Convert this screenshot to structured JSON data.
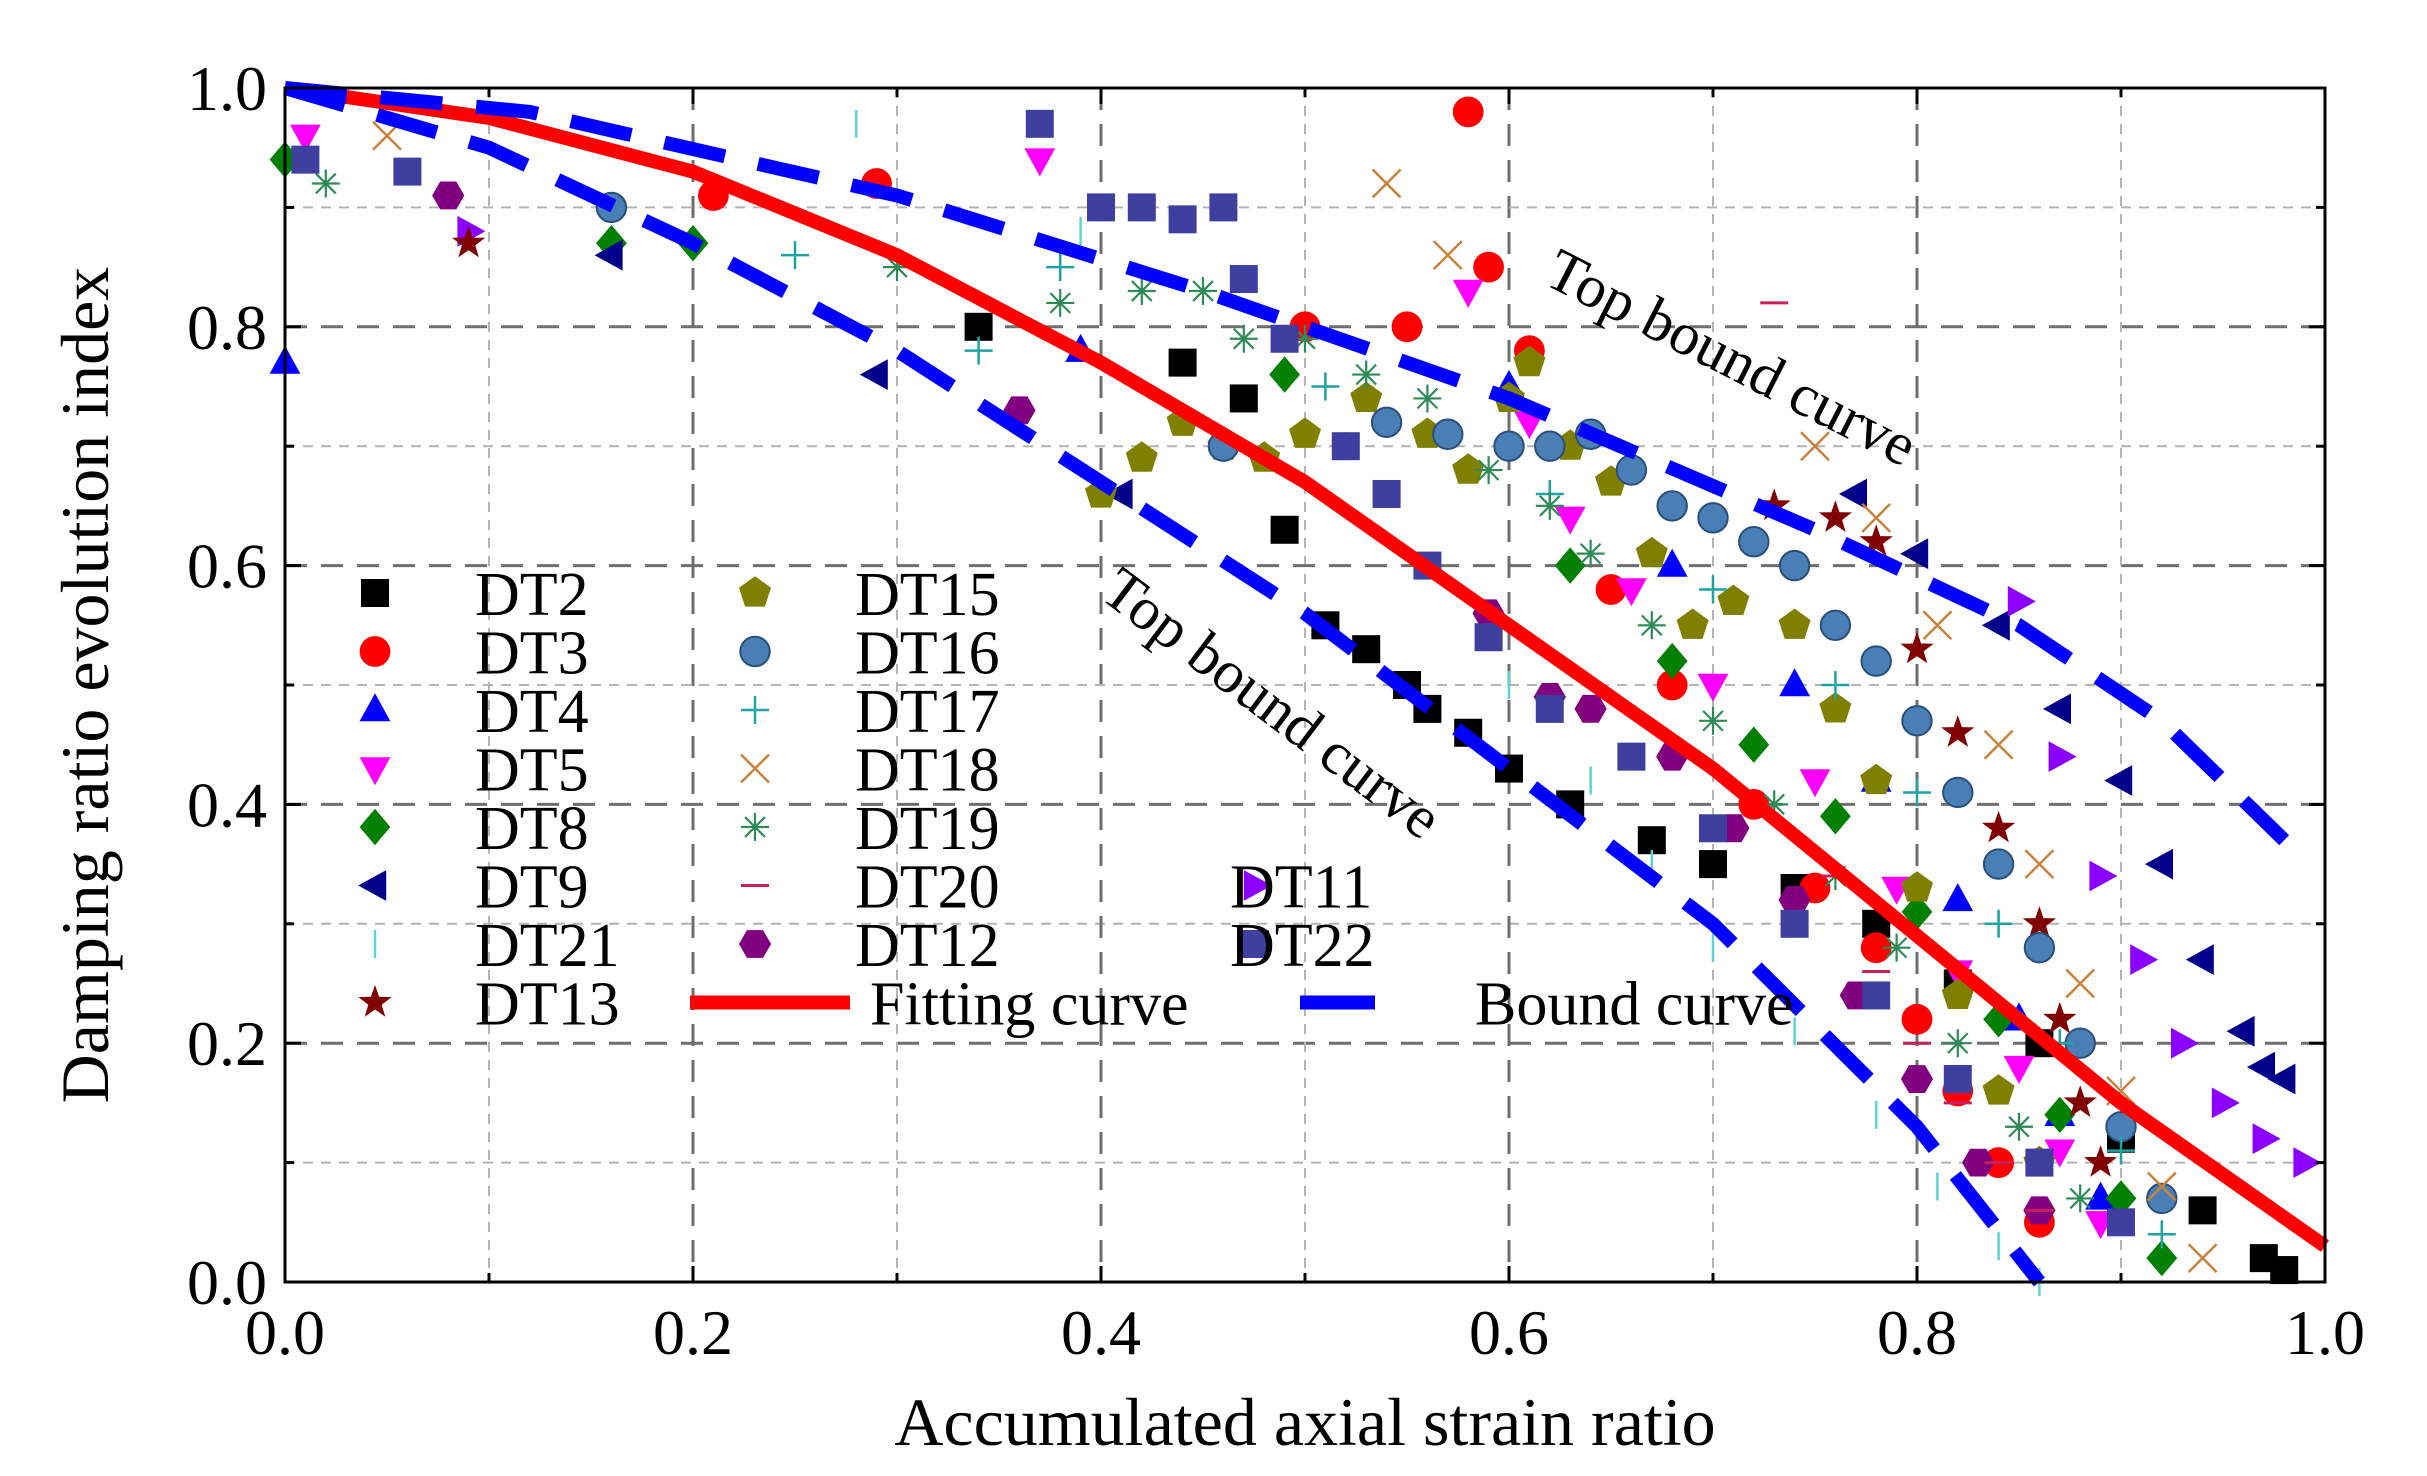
{
  "chart_data": {
    "type": "scatter",
    "xlabel": "Accumulated axial strain ratio",
    "ylabel": "Damping ratio evolution index",
    "xlim": [
      0,
      1
    ],
    "ylim": [
      0,
      1
    ],
    "x_ticks": [
      "0.0",
      "0.2",
      "0.4",
      "0.6",
      "0.8",
      "1.0"
    ],
    "y_ticks": [
      "0.0",
      "0.2",
      "0.4",
      "0.6",
      "0.8",
      "1.0"
    ],
    "grid": true,
    "legend_position": "bottom-left",
    "annotations": [
      "Top bound curve",
      "Top bound curve"
    ],
    "series": [
      {
        "name": "DT2",
        "marker": "square",
        "color": "#000000",
        "points": [
          [
            0.34,
            0.8
          ],
          [
            0.44,
            0.77
          ],
          [
            0.47,
            0.74
          ],
          [
            0.49,
            0.63
          ],
          [
            0.51,
            0.55
          ],
          [
            0.53,
            0.53
          ],
          [
            0.55,
            0.5
          ],
          [
            0.56,
            0.48
          ],
          [
            0.58,
            0.46
          ],
          [
            0.6,
            0.43
          ],
          [
            0.63,
            0.4
          ],
          [
            0.67,
            0.37
          ],
          [
            0.7,
            0.35
          ],
          [
            0.74,
            0.33
          ],
          [
            0.78,
            0.3
          ],
          [
            0.82,
            0.25
          ],
          [
            0.86,
            0.2
          ],
          [
            0.9,
            0.12
          ],
          [
            0.94,
            0.06
          ],
          [
            0.97,
            0.02
          ],
          [
            0.98,
            0.01
          ]
        ]
      },
      {
        "name": "DT3",
        "marker": "circle",
        "color": "#ff0000",
        "points": [
          [
            0.21,
            0.91
          ],
          [
            0.29,
            0.92
          ],
          [
            0.5,
            0.8
          ],
          [
            0.55,
            0.8
          ],
          [
            0.58,
            0.98
          ],
          [
            0.59,
            0.85
          ],
          [
            0.61,
            0.78
          ],
          [
            0.65,
            0.58
          ],
          [
            0.68,
            0.5
          ],
          [
            0.72,
            0.4
          ],
          [
            0.75,
            0.33
          ],
          [
            0.78,
            0.28
          ],
          [
            0.8,
            0.22
          ],
          [
            0.82,
            0.16
          ],
          [
            0.84,
            0.1
          ],
          [
            0.86,
            0.05
          ]
        ]
      },
      {
        "name": "DT4",
        "marker": "triangle-up",
        "color": "#0000ff",
        "points": [
          [
            0.0,
            0.77
          ],
          [
            0.39,
            0.78
          ],
          [
            0.6,
            0.75
          ],
          [
            0.68,
            0.6
          ],
          [
            0.74,
            0.5
          ],
          [
            0.78,
            0.42
          ],
          [
            0.82,
            0.32
          ],
          [
            0.85,
            0.22
          ],
          [
            0.87,
            0.14
          ],
          [
            0.89,
            0.07
          ]
        ]
      },
      {
        "name": "DT5",
        "marker": "triangle-down",
        "color": "#ff00ff",
        "points": [
          [
            0.01,
            0.96
          ],
          [
            0.37,
            0.94
          ],
          [
            0.58,
            0.83
          ],
          [
            0.61,
            0.72
          ],
          [
            0.63,
            0.64
          ],
          [
            0.66,
            0.58
          ],
          [
            0.7,
            0.5
          ],
          [
            0.75,
            0.42
          ],
          [
            0.79,
            0.33
          ],
          [
            0.82,
            0.26
          ],
          [
            0.85,
            0.18
          ],
          [
            0.87,
            0.11
          ],
          [
            0.89,
            0.05
          ]
        ]
      },
      {
        "name": "DT8",
        "marker": "diamond",
        "color": "#008000",
        "points": [
          [
            0.0,
            0.94
          ],
          [
            0.16,
            0.87
          ],
          [
            0.2,
            0.87
          ],
          [
            0.49,
            0.76
          ],
          [
            0.63,
            0.6
          ],
          [
            0.68,
            0.52
          ],
          [
            0.72,
            0.45
          ],
          [
            0.76,
            0.39
          ],
          [
            0.8,
            0.31
          ],
          [
            0.84,
            0.22
          ],
          [
            0.87,
            0.14
          ],
          [
            0.9,
            0.07
          ],
          [
            0.92,
            0.02
          ]
        ]
      },
      {
        "name": "DT9",
        "marker": "triangle-left",
        "color": "#00008b",
        "points": [
          [
            0.16,
            0.86
          ],
          [
            0.29,
            0.76
          ],
          [
            0.41,
            0.66
          ],
          [
            0.77,
            0.66
          ],
          [
            0.8,
            0.61
          ],
          [
            0.84,
            0.55
          ],
          [
            0.87,
            0.48
          ],
          [
            0.9,
            0.42
          ],
          [
            0.92,
            0.35
          ],
          [
            0.94,
            0.27
          ],
          [
            0.96,
            0.21
          ],
          [
            0.97,
            0.18
          ],
          [
            0.98,
            0.17
          ]
        ]
      },
      {
        "name": "DT11",
        "marker": "triangle-right",
        "color": "#8b00ff",
        "points": [
          [
            0.09,
            0.88
          ],
          [
            0.85,
            0.57
          ],
          [
            0.87,
            0.44
          ],
          [
            0.89,
            0.34
          ],
          [
            0.91,
            0.27
          ],
          [
            0.93,
            0.2
          ],
          [
            0.95,
            0.15
          ],
          [
            0.97,
            0.12
          ],
          [
            0.99,
            0.1
          ]
        ]
      },
      {
        "name": "DT12",
        "marker": "hexagon",
        "color": "#800080",
        "points": [
          [
            0.08,
            0.91
          ],
          [
            0.36,
            0.73
          ],
          [
            0.59,
            0.56
          ],
          [
            0.62,
            0.49
          ],
          [
            0.64,
            0.48
          ],
          [
            0.68,
            0.44
          ],
          [
            0.71,
            0.38
          ],
          [
            0.74,
            0.32
          ],
          [
            0.77,
            0.24
          ],
          [
            0.8,
            0.17
          ],
          [
            0.83,
            0.1
          ],
          [
            0.86,
            0.06
          ]
        ]
      },
      {
        "name": "DT13",
        "marker": "star",
        "color": "#800000",
        "points": [
          [
            0.09,
            0.87
          ],
          [
            0.73,
            0.65
          ],
          [
            0.76,
            0.64
          ],
          [
            0.78,
            0.62
          ],
          [
            0.8,
            0.53
          ],
          [
            0.82,
            0.46
          ],
          [
            0.84,
            0.38
          ],
          [
            0.86,
            0.3
          ],
          [
            0.87,
            0.22
          ],
          [
            0.88,
            0.15
          ],
          [
            0.89,
            0.1
          ]
        ]
      },
      {
        "name": "DT15",
        "marker": "pentagon",
        "color": "#808000",
        "points": [
          [
            0.4,
            0.66
          ],
          [
            0.42,
            0.69
          ],
          [
            0.44,
            0.72
          ],
          [
            0.46,
            0.7
          ],
          [
            0.48,
            0.69
          ],
          [
            0.5,
            0.71
          ],
          [
            0.53,
            0.74
          ],
          [
            0.56,
            0.71
          ],
          [
            0.58,
            0.68
          ],
          [
            0.6,
            0.74
          ],
          [
            0.61,
            0.77
          ],
          [
            0.63,
            0.7
          ],
          [
            0.65,
            0.67
          ],
          [
            0.67,
            0.61
          ],
          [
            0.69,
            0.55
          ],
          [
            0.71,
            0.57
          ],
          [
            0.74,
            0.55
          ],
          [
            0.76,
            0.48
          ],
          [
            0.78,
            0.42
          ],
          [
            0.8,
            0.33
          ],
          [
            0.82,
            0.24
          ],
          [
            0.84,
            0.16
          ],
          [
            0.86,
            0.1
          ]
        ]
      },
      {
        "name": "DT16",
        "marker": "sphere",
        "color": "#4a7fb5",
        "points": [
          [
            0.16,
            0.9
          ],
          [
            0.46,
            0.7
          ],
          [
            0.54,
            0.72
          ],
          [
            0.57,
            0.71
          ],
          [
            0.6,
            0.7
          ],
          [
            0.62,
            0.7
          ],
          [
            0.64,
            0.71
          ],
          [
            0.66,
            0.68
          ],
          [
            0.68,
            0.65
          ],
          [
            0.7,
            0.64
          ],
          [
            0.72,
            0.62
          ],
          [
            0.74,
            0.6
          ],
          [
            0.76,
            0.55
          ],
          [
            0.78,
            0.52
          ],
          [
            0.8,
            0.47
          ],
          [
            0.82,
            0.41
          ],
          [
            0.84,
            0.35
          ],
          [
            0.86,
            0.28
          ],
          [
            0.88,
            0.2
          ],
          [
            0.9,
            0.13
          ],
          [
            0.92,
            0.07
          ]
        ]
      },
      {
        "name": "DT17",
        "marker": "plus",
        "color": "#1fa3a3",
        "points": [
          [
            0.25,
            0.86
          ],
          [
            0.34,
            0.78
          ],
          [
            0.38,
            0.85
          ],
          [
            0.51,
            0.75
          ],
          [
            0.62,
            0.66
          ],
          [
            0.7,
            0.58
          ],
          [
            0.76,
            0.5
          ],
          [
            0.8,
            0.41
          ],
          [
            0.84,
            0.3
          ],
          [
            0.87,
            0.2
          ],
          [
            0.9,
            0.11
          ],
          [
            0.92,
            0.04
          ]
        ]
      },
      {
        "name": "DT18",
        "marker": "cross",
        "color": "#c8823c",
        "points": [
          [
            0.05,
            0.96
          ],
          [
            0.54,
            0.92
          ],
          [
            0.57,
            0.86
          ],
          [
            0.75,
            0.7
          ],
          [
            0.78,
            0.64
          ],
          [
            0.81,
            0.55
          ],
          [
            0.84,
            0.45
          ],
          [
            0.86,
            0.35
          ],
          [
            0.88,
            0.25
          ],
          [
            0.9,
            0.16
          ],
          [
            0.92,
            0.08
          ],
          [
            0.94,
            0.02
          ]
        ]
      },
      {
        "name": "DT19",
        "marker": "asterisk",
        "color": "#2e8b57",
        "points": [
          [
            0.02,
            0.92
          ],
          [
            0.3,
            0.85
          ],
          [
            0.38,
            0.82
          ],
          [
            0.42,
            0.83
          ],
          [
            0.45,
            0.83
          ],
          [
            0.47,
            0.79
          ],
          [
            0.5,
            0.79
          ],
          [
            0.53,
            0.76
          ],
          [
            0.56,
            0.74
          ],
          [
            0.59,
            0.68
          ],
          [
            0.62,
            0.65
          ],
          [
            0.64,
            0.61
          ],
          [
            0.67,
            0.55
          ],
          [
            0.7,
            0.47
          ],
          [
            0.73,
            0.4
          ],
          [
            0.76,
            0.34
          ],
          [
            0.79,
            0.28
          ],
          [
            0.82,
            0.2
          ],
          [
            0.85,
            0.13
          ],
          [
            0.88,
            0.07
          ]
        ]
      },
      {
        "name": "DT20",
        "marker": "dash",
        "color": "#c81e5a",
        "points": [
          [
            0.73,
            0.82
          ],
          [
            0.76,
            0.34
          ],
          [
            0.78,
            0.26
          ],
          [
            0.8,
            0.2
          ],
          [
            0.82,
            0.15
          ],
          [
            0.84,
            0.1
          ],
          [
            0.86,
            0.06
          ]
        ]
      },
      {
        "name": "DT21",
        "marker": "vline",
        "color": "#5fd3d3",
        "points": [
          [
            0.28,
            0.97
          ],
          [
            0.39,
            0.88
          ],
          [
            0.52,
            0.7
          ],
          [
            0.56,
            0.6
          ],
          [
            0.6,
            0.5
          ],
          [
            0.64,
            0.42
          ],
          [
            0.67,
            0.35
          ],
          [
            0.7,
            0.28
          ],
          [
            0.74,
            0.21
          ],
          [
            0.78,
            0.14
          ],
          [
            0.81,
            0.08
          ],
          [
            0.84,
            0.03
          ],
          [
            0.86,
            0.0
          ]
        ]
      },
      {
        "name": "DT22",
        "marker": "square",
        "color": "#3f3f9f",
        "points": [
          [
            0.01,
            0.94
          ],
          [
            0.06,
            0.93
          ],
          [
            0.37,
            0.97
          ],
          [
            0.4,
            0.9
          ],
          [
            0.42,
            0.9
          ],
          [
            0.44,
            0.89
          ],
          [
            0.46,
            0.9
          ],
          [
            0.47,
            0.84
          ],
          [
            0.49,
            0.79
          ],
          [
            0.52,
            0.7
          ],
          [
            0.54,
            0.66
          ],
          [
            0.56,
            0.6
          ],
          [
            0.59,
            0.54
          ],
          [
            0.62,
            0.48
          ],
          [
            0.66,
            0.44
          ],
          [
            0.7,
            0.38
          ],
          [
            0.74,
            0.3
          ],
          [
            0.78,
            0.24
          ],
          [
            0.82,
            0.17
          ],
          [
            0.86,
            0.1
          ],
          [
            0.9,
            0.05
          ]
        ]
      },
      {
        "name": "Fitting curve",
        "type": "line",
        "color": "#ff0000",
        "points": [
          [
            0.0,
            1.0
          ],
          [
            0.1,
            0.975
          ],
          [
            0.2,
            0.93
          ],
          [
            0.3,
            0.86
          ],
          [
            0.4,
            0.77
          ],
          [
            0.5,
            0.67
          ],
          [
            0.6,
            0.55
          ],
          [
            0.7,
            0.43
          ],
          [
            0.8,
            0.29
          ],
          [
            0.9,
            0.15
          ],
          [
            1.0,
            0.03
          ]
        ]
      },
      {
        "name": "Bound curve",
        "type": "line",
        "color": "#0000ff",
        "dashed": true,
        "segments": [
          [
            [
              0.0,
              1.0
            ],
            [
              0.12,
              0.98
            ],
            [
              0.3,
              0.91
            ],
            [
              0.45,
              0.83
            ],
            [
              0.6,
              0.74
            ],
            [
              0.75,
              0.63
            ],
            [
              0.85,
              0.55
            ],
            [
              0.92,
              0.47
            ],
            [
              0.98,
              0.37
            ]
          ],
          [
            [
              0.0,
              1.0
            ],
            [
              0.1,
              0.95
            ],
            [
              0.2,
              0.87
            ],
            [
              0.3,
              0.78
            ],
            [
              0.4,
              0.67
            ],
            [
              0.5,
              0.56
            ],
            [
              0.6,
              0.43
            ],
            [
              0.7,
              0.3
            ],
            [
              0.8,
              0.13
            ],
            [
              0.86,
              0.0
            ]
          ]
        ]
      }
    ]
  }
}
